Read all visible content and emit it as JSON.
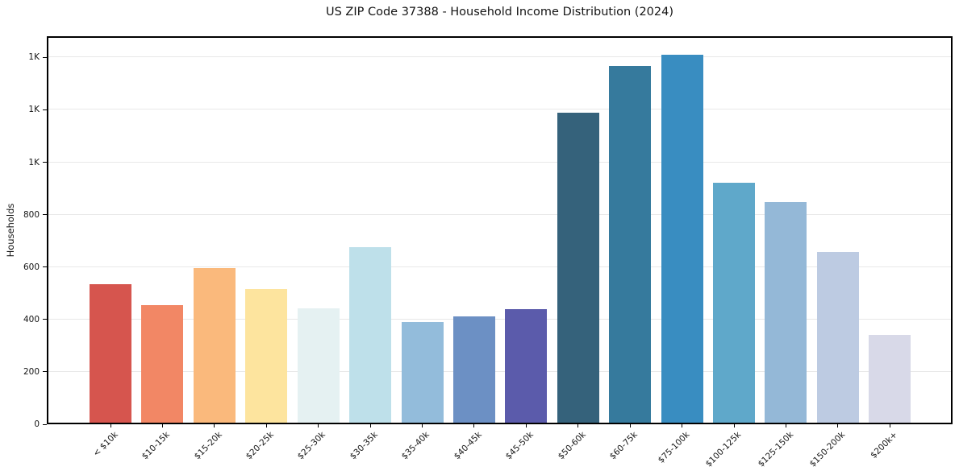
{
  "chart_data": {
    "type": "bar",
    "title": "US ZIP Code 37388 - Household Income Distribution (2024)",
    "xlabel": "",
    "ylabel": "Households",
    "categories": [
      "< $10k",
      "$10-15k",
      "$15-20k",
      "$20-25k",
      "$25-30k",
      "$30-35k",
      "$35-40k",
      "$40-45k",
      "$45-50k",
      "$50-60k",
      "$60-75k",
      "$75-100k",
      "$100-125k",
      "$125-150k",
      "$150-200k",
      "$200k+"
    ],
    "values": [
      535,
      455,
      595,
      517,
      443,
      676,
      391,
      412,
      440,
      1190,
      1368,
      1410,
      922,
      848,
      657,
      340
    ],
    "bar_colors": [
      "#d6554e",
      "#f28765",
      "#fab97c",
      "#fde49e",
      "#e5f1f2",
      "#bee0ea",
      "#93bcdb",
      "#6c90c4",
      "#5b5bab",
      "#35627b",
      "#367a9d",
      "#398dc1",
      "#5fa8ca",
      "#94b8d7",
      "#bdcbe2",
      "#d8d9e8"
    ],
    "yticks": [
      {
        "value": 0,
        "label": "0"
      },
      {
        "value": 200,
        "label": "200"
      },
      {
        "value": 400,
        "label": "400"
      },
      {
        "value": 600,
        "label": "600"
      },
      {
        "value": 800,
        "label": "800"
      },
      {
        "value": 1000,
        "label": "1K"
      },
      {
        "value": 1200,
        "label": "1K"
      },
      {
        "value": 1400,
        "label": "1K"
      }
    ],
    "ylim": [
      0,
      1481
    ],
    "grid": "horizontal",
    "legend": "none",
    "colors": {
      "background": "#ffffff",
      "grid": "#e8e8e8",
      "spine": "#000000",
      "text": "#141414"
    }
  }
}
